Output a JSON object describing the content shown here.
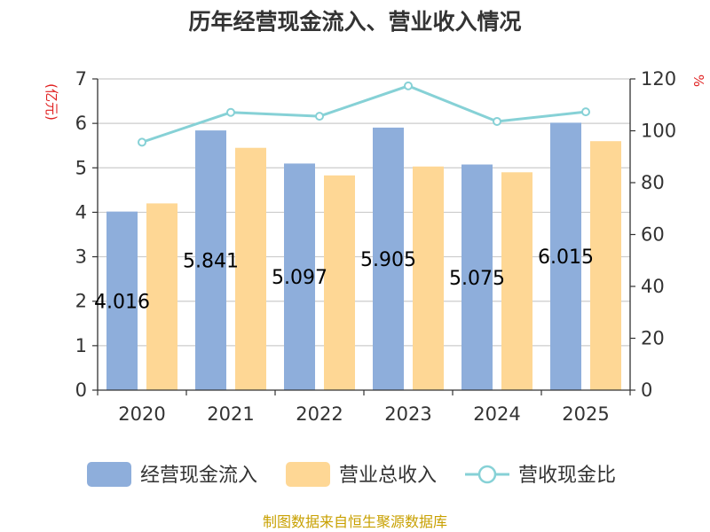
{
  "chart_data": {
    "type": "bar",
    "title": "历年经营现金流入、营业收入情况",
    "categories": [
      "2020",
      "2021",
      "2022",
      "2023",
      "2024",
      "2025"
    ],
    "series": [
      {
        "name": "经营现金流入",
        "type": "bar",
        "axis": "left",
        "color": "#8eaedb",
        "values": [
          4.016,
          5.841,
          5.097,
          5.905,
          5.075,
          6.015
        ],
        "labels": [
          "4.016",
          "5.841",
          "5.097",
          "5.905",
          "5.075",
          "6.015"
        ]
      },
      {
        "name": "营业总收入",
        "type": "bar",
        "axis": "left",
        "color": "#fed795",
        "values": [
          4.2,
          5.45,
          4.83,
          5.03,
          4.9,
          5.6
        ]
      },
      {
        "name": "营收现金比",
        "type": "line",
        "axis": "right",
        "color": "#86d1d6",
        "values": [
          95.6,
          107.1,
          105.6,
          117.3,
          103.6,
          107.3
        ]
      }
    ],
    "y_left": {
      "label": "(亿元)",
      "min": 0,
      "max": 7,
      "ticks": [
        "0",
        "1",
        "2",
        "3",
        "4",
        "5",
        "6",
        "7"
      ]
    },
    "y_right": {
      "label": "%",
      "min": 0,
      "max": 120,
      "ticks": [
        "0",
        "20",
        "40",
        "60",
        "80",
        "100",
        "120"
      ]
    },
    "grid": true,
    "legend": "bottom"
  },
  "footer": {
    "source": "制图数据来自恒生聚源数据库"
  }
}
